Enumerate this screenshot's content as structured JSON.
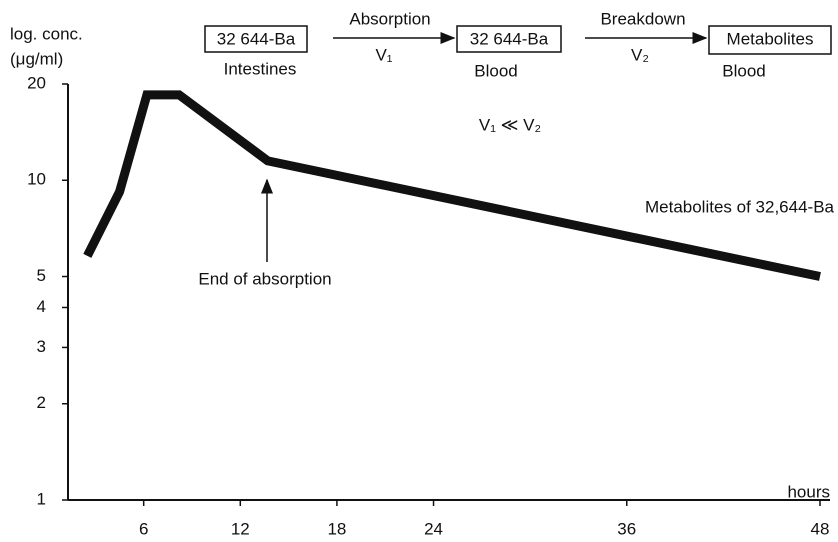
{
  "chart_data": {
    "type": "line",
    "y_label": [
      "log. conc.",
      "(μg/ml)"
    ],
    "x_label": "hours",
    "x": [
      2.5,
      4.5,
      6.2,
      8.2,
      13.7,
      48
    ],
    "series": [
      {
        "name": "Metabolites of 32,644-Ba",
        "color": "#111111",
        "values": [
          5.8,
          9.2,
          18.5,
          18.5,
          11.5,
          5
        ]
      }
    ],
    "xlim": [
      1.3,
      48
    ],
    "xticks": [
      6,
      12,
      18,
      24,
      36,
      48
    ],
    "ylim": [
      1,
      20
    ],
    "yticks": [
      1,
      2,
      3,
      4,
      5,
      10,
      20
    ],
    "log_y": true,
    "annotations": [
      "End of absorption",
      "V₁ ≪ V₂"
    ],
    "scheme": {
      "step1": {
        "box": "32 644-Ba",
        "place": "Intestines"
      },
      "arrow1": {
        "label": "Absorption",
        "rate": "V₁"
      },
      "step2": {
        "box": "32 644-Ba",
        "place": "Blood"
      },
      "arrow2": {
        "label": "Breakdown",
        "rate": "V₂"
      },
      "step3": {
        "box": "Metabolites",
        "place": "Blood"
      }
    }
  }
}
